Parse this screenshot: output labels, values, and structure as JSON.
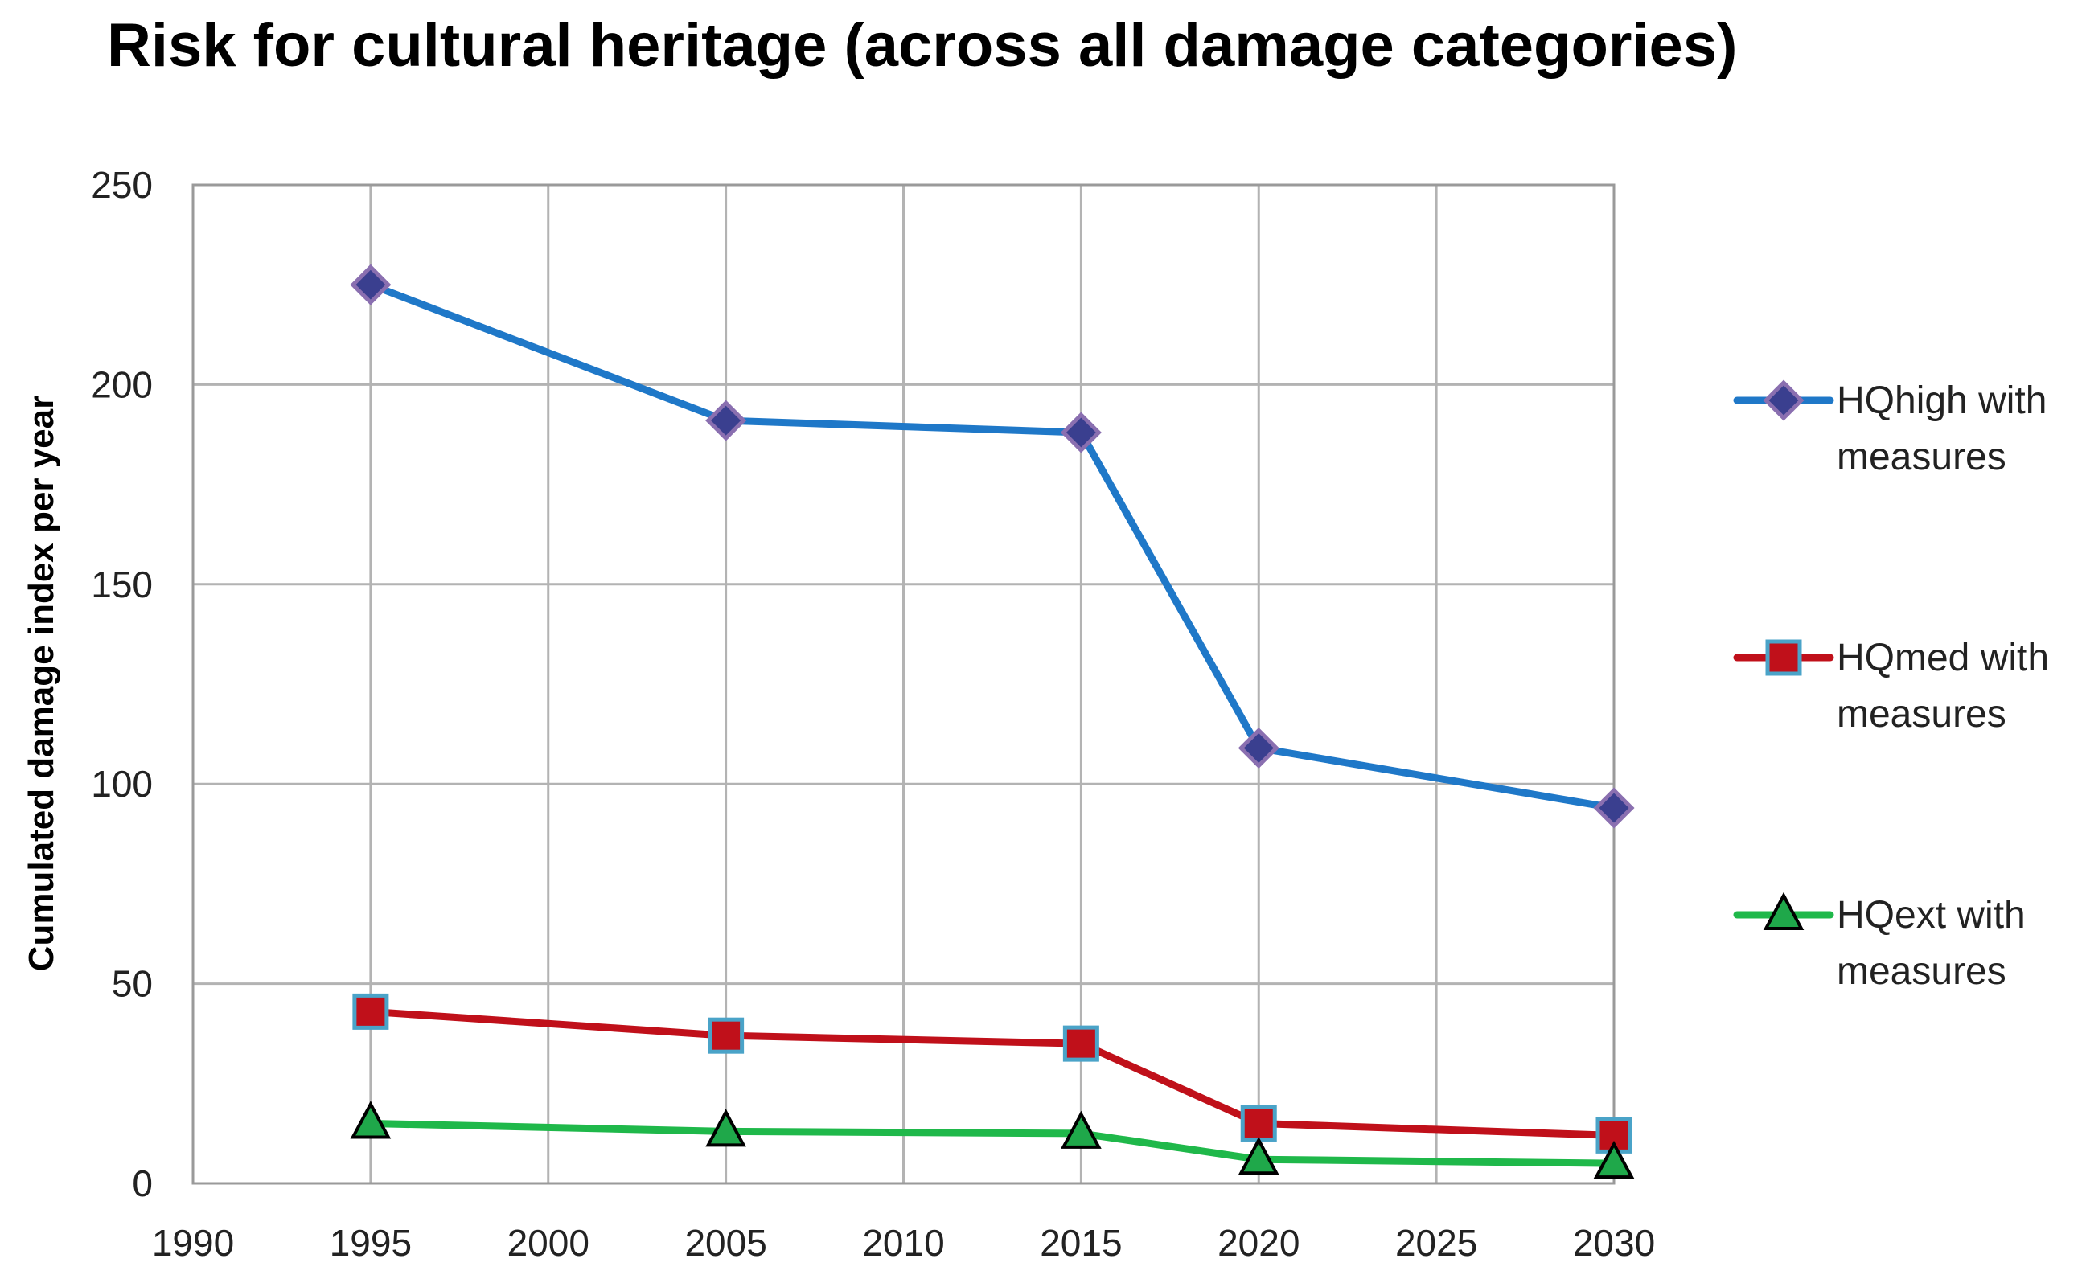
{
  "chart_data": {
    "type": "line",
    "title": "Risk for cultural heritage (across all damage categories)",
    "xlabel": "",
    "ylabel": "Cumulated damage index per year",
    "xlim": [
      1990,
      2030
    ],
    "ylim": [
      0,
      250
    ],
    "xticks": [
      1990,
      1995,
      2000,
      2005,
      2010,
      2015,
      2020,
      2025,
      2030
    ],
    "yticks": [
      0,
      50,
      100,
      150,
      200,
      250
    ],
    "grid": true,
    "legend_position": "right",
    "series": [
      {
        "name": "HQhigh with measures",
        "legend_lines": [
          "HQhigh with",
          "measures"
        ],
        "marker": "diamond",
        "color": "#1f78c8",
        "marker_fill": "#3a3f8f",
        "marker_stroke": "#8a6fb0",
        "x": [
          1995,
          2005,
          2015,
          2020,
          2030
        ],
        "y": [
          225,
          191,
          188,
          109,
          94
        ]
      },
      {
        "name": "HQmed with measures",
        "legend_lines": [
          "HQmed with",
          "measures"
        ],
        "marker": "square",
        "color": "#c0101a",
        "marker_fill": "#c0101a",
        "marker_stroke": "#4aa3c8",
        "x": [
          1995,
          2005,
          2015,
          2020,
          2030
        ],
        "y": [
          43,
          37,
          35,
          15,
          12
        ]
      },
      {
        "name": "HQext with measures",
        "legend_lines": [
          "HQext with",
          "measures"
        ],
        "marker": "triangle",
        "color": "#1fb84a",
        "marker_fill": "#1fa84a",
        "marker_stroke": "#000000",
        "x": [
          1995,
          2005,
          2015,
          2020,
          2030
        ],
        "y": [
          15,
          13,
          12.5,
          6,
          5
        ]
      }
    ]
  }
}
